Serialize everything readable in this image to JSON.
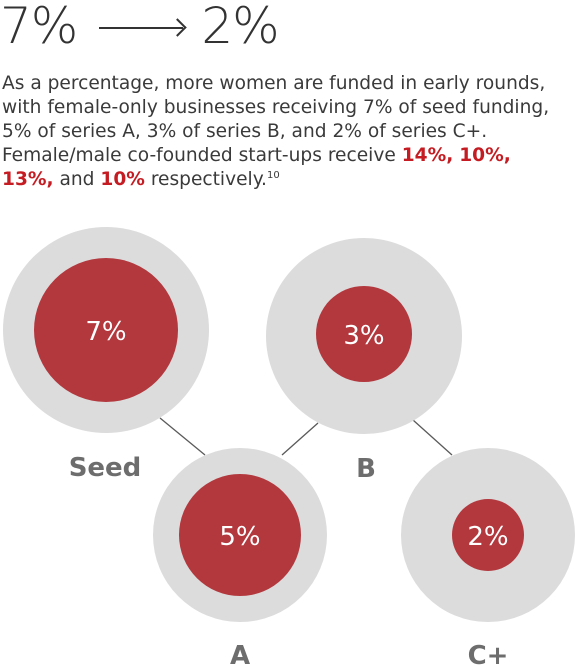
{
  "headline": {
    "from": "7%",
    "to": "2%"
  },
  "description": {
    "part1": "As a percentage, more women are funded in early rounds, with female-only businesses receiving 7% of seed funding, 5% of series A, 3% of series B, and 2% of series C+. Female/male co-founded start-ups receive ",
    "h1": "14%,",
    "h2": "10%,",
    "h3": "13%,",
    "and_text": " and ",
    "h4": "10%",
    "part2": " respectively.",
    "footnote": "10"
  },
  "stages": [
    {
      "name": "Seed",
      "female_only": "7%"
    },
    {
      "name": "B",
      "female_only": "3%"
    },
    {
      "name": "A",
      "female_only": "5%"
    },
    {
      "name": "C+",
      "female_only": "2%"
    }
  ],
  "colors": {
    "outer": "#dcdcdc",
    "inner": "#b2383e",
    "highlight": "#c41c22",
    "connector": "#5a5a5a"
  }
}
